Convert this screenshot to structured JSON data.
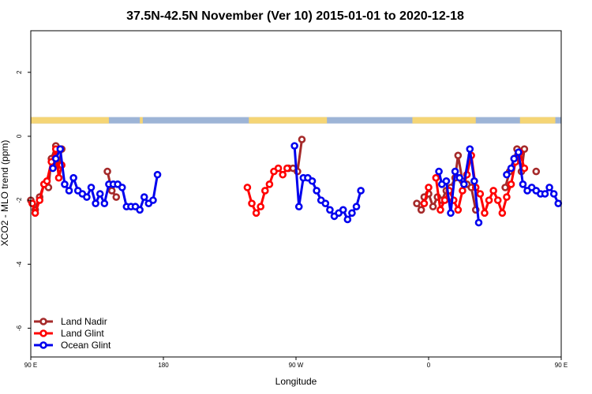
{
  "chart_data": {
    "type": "line",
    "title": "37.5N-42.5N November (Ver 10)   2015-01-01 to 2020-12-18",
    "xlabel": "Longitude",
    "ylabel": "XCO2 - MLO trend (ppm)",
    "xlim": [
      90,
      450
    ],
    "ylim": [
      -6.9,
      3.3
    ],
    "x_ticks": [
      {
        "value": 90,
        "label": "90 E"
      },
      {
        "value": 180,
        "label": "180"
      },
      {
        "value": 270,
        "label": "90 W"
      },
      {
        "value": 360,
        "label": "0"
      },
      {
        "value": 450,
        "label": "90 E"
      }
    ],
    "y_ticks": [
      {
        "value": 2,
        "label": "2"
      },
      {
        "value": 0,
        "label": "0"
      },
      {
        "value": -2,
        "label": "-2"
      },
      {
        "value": -4,
        "label": "-4"
      },
      {
        "value": -6,
        "label": "-6"
      }
    ],
    "land_ocean_strip": {
      "y_range": [
        0.4,
        0.6
      ],
      "ocean_color": "#9db4d6",
      "land_color": "#f5d575",
      "land_segments": [
        [
          90,
          143
        ],
        [
          164,
          166
        ],
        [
          238,
          291
        ],
        [
          349,
          392
        ],
        [
          422,
          446
        ]
      ]
    },
    "legend_position": "bottom-left",
    "series": [
      {
        "name": "Land Nadir",
        "color": "#a52a2a",
        "segments": [
          [
            [
              90,
              -2.0
            ],
            [
              93,
              -2.3
            ],
            [
              96,
              -1.9
            ],
            [
              99,
              -1.5
            ],
            [
              102,
              -1.6
            ],
            [
              104,
              -0.7
            ],
            [
              107,
              -0.3
            ],
            [
              109,
              -0.9
            ],
            [
              111,
              -0.4
            ]
          ],
          [
            [
              142,
              -1.1
            ],
            [
              145,
              -1.7
            ],
            [
              148,
              -1.9
            ]
          ],
          [
            [
              265,
              -1.0
            ],
            [
              268,
              -1.0
            ],
            [
              271,
              -1.1
            ],
            [
              274,
              -0.1
            ]
          ],
          [
            [
              352,
              -2.1
            ],
            [
              355,
              -2.3
            ],
            [
              357,
              -1.9
            ],
            [
              360,
              -1.8
            ],
            [
              363,
              -2.2
            ],
            [
              366,
              -1.9
            ],
            [
              369,
              -2.0
            ],
            [
              372,
              -1.7
            ],
            [
              375,
              -1.6
            ],
            [
              378,
              -1.3
            ],
            [
              380,
              -0.6
            ],
            [
              383,
              -1.4
            ],
            [
              386,
              -1.5
            ],
            [
              389,
              -1.6
            ],
            [
              392,
              -2.3
            ]
          ],
          [
            [
              412,
              -1.6
            ],
            [
              415,
              -1.1
            ],
            [
              418,
              -0.7
            ],
            [
              420,
              -0.4
            ],
            [
              423,
              -1.1
            ],
            [
              425,
              -0.4
            ]
          ],
          [
            [
              433,
              -1.1
            ]
          ]
        ]
      },
      {
        "name": "Land Glint",
        "color": "#ff0000",
        "segments": [
          [
            [
              91,
              -2.1
            ],
            [
              93,
              -2.4
            ],
            [
              96,
              -2.0
            ],
            [
              99,
              -1.5
            ],
            [
              101,
              -1.4
            ],
            [
              104,
              -0.8
            ],
            [
              107,
              -0.4
            ],
            [
              109,
              -1.3
            ],
            [
              111,
              -0.9
            ]
          ],
          [
            [
              237,
              -1.6
            ],
            [
              240,
              -2.1
            ],
            [
              243,
              -2.4
            ],
            [
              246,
              -2.2
            ],
            [
              249,
              -1.7
            ],
            [
              252,
              -1.5
            ],
            [
              255,
              -1.1
            ],
            [
              258,
              -1.0
            ],
            [
              261,
              -1.2
            ],
            [
              264,
              -1.0
            ]
          ],
          [
            [
              357,
              -2.1
            ],
            [
              360,
              -1.6
            ]
          ],
          [
            [
              365,
              -1.3
            ],
            [
              368,
              -2.3
            ],
            [
              371,
              -2.0
            ],
            [
              374,
              -1.7
            ],
            [
              377,
              -2.0
            ],
            [
              380,
              -2.3
            ],
            [
              383,
              -1.7
            ],
            [
              386,
              -1.2
            ],
            [
              389,
              -0.6
            ],
            [
              392,
              -1.6
            ],
            [
              395,
              -1.8
            ],
            [
              398,
              -2.4
            ],
            [
              401,
              -2.0
            ],
            [
              404,
              -1.7
            ],
            [
              407,
              -2.0
            ],
            [
              410,
              -2.4
            ],
            [
              413,
              -1.9
            ],
            [
              416,
              -1.5
            ],
            [
              419,
              -0.8
            ],
            [
              422,
              -0.5
            ],
            [
              425,
              -1.0
            ]
          ]
        ]
      },
      {
        "name": "Ocean Glint",
        "color": "#0000ee",
        "segments": [
          [
            [
              105,
              -1.0
            ],
            [
              107,
              -0.7
            ],
            [
              110,
              -0.4
            ],
            [
              113,
              -1.5
            ],
            [
              116,
              -1.7
            ],
            [
              119,
              -1.3
            ],
            [
              122,
              -1.7
            ],
            [
              125,
              -1.8
            ],
            [
              128,
              -1.9
            ],
            [
              131,
              -1.6
            ],
            [
              134,
              -2.1
            ],
            [
              137,
              -1.8
            ],
            [
              140,
              -2.1
            ],
            [
              143,
              -1.5
            ],
            [
              146,
              -1.5
            ],
            [
              149,
              -1.5
            ],
            [
              152,
              -1.6
            ],
            [
              155,
              -2.2
            ],
            [
              158,
              -2.2
            ],
            [
              161,
              -2.2
            ],
            [
              164,
              -2.3
            ],
            [
              167,
              -1.9
            ],
            [
              170,
              -2.1
            ],
            [
              173,
              -2.0
            ],
            [
              176,
              -1.2
            ]
          ],
          [
            [
              269,
              -0.3
            ],
            [
              272,
              -2.2
            ],
            [
              275,
              -1.3
            ],
            [
              278,
              -1.3
            ],
            [
              281,
              -1.4
            ],
            [
              284,
              -1.7
            ],
            [
              287,
              -2.0
            ],
            [
              290,
              -2.1
            ],
            [
              293,
              -2.3
            ],
            [
              296,
              -2.5
            ],
            [
              299,
              -2.4
            ],
            [
              302,
              -2.3
            ],
            [
              305,
              -2.6
            ],
            [
              308,
              -2.4
            ],
            [
              311,
              -2.2
            ],
            [
              314,
              -1.7
            ]
          ],
          [
            [
              367,
              -1.1
            ],
            [
              369,
              -1.5
            ],
            [
              372,
              -1.4
            ],
            [
              375,
              -2.4
            ],
            [
              378,
              -1.1
            ],
            [
              381,
              -1.3
            ],
            [
              384,
              -1.5
            ],
            [
              388,
              -0.4
            ],
            [
              391,
              -1.4
            ],
            [
              394,
              -2.7
            ]
          ],
          [
            [
              413,
              -1.2
            ],
            [
              416,
              -1.0
            ],
            [
              418,
              -0.7
            ],
            [
              421,
              -0.5
            ],
            [
              424,
              -1.5
            ],
            [
              427,
              -1.7
            ],
            [
              430,
              -1.6
            ],
            [
              433,
              -1.7
            ],
            [
              436,
              -1.8
            ],
            [
              439,
              -1.8
            ],
            [
              442,
              -1.6
            ],
            [
              445,
              -1.8
            ],
            [
              448,
              -2.1
            ]
          ]
        ]
      }
    ]
  }
}
